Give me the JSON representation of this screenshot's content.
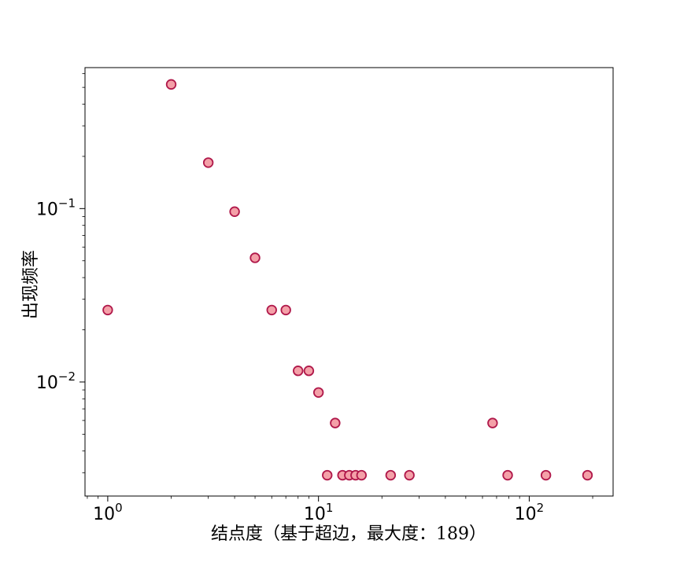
{
  "chart_data": {
    "type": "scatter",
    "xlabel": "结点度（基于超边，最大度：189）",
    "ylabel": "出现频率",
    "xscale": "log",
    "yscale": "log",
    "xlim": [
      0.78,
      250
    ],
    "ylim": [
      0.0022,
      0.65
    ],
    "xticks": [
      {
        "value": 1,
        "base": "10",
        "exp": "0"
      },
      {
        "value": 10,
        "base": "10",
        "exp": "1"
      },
      {
        "value": 100,
        "base": "10",
        "exp": "2"
      }
    ],
    "yticks": [
      {
        "value": 0.01,
        "base": "10",
        "exp": "−2"
      },
      {
        "value": 0.1,
        "base": "10",
        "exp": "−1"
      }
    ],
    "grid": false,
    "marker": {
      "fill": "#f4a0a8",
      "stroke": "#b0184a"
    },
    "points": [
      {
        "x": 1,
        "y": 0.026
      },
      {
        "x": 2,
        "y": 0.52
      },
      {
        "x": 3,
        "y": 0.184
      },
      {
        "x": 4,
        "y": 0.096
      },
      {
        "x": 5,
        "y": 0.052
      },
      {
        "x": 6,
        "y": 0.026
      },
      {
        "x": 7,
        "y": 0.026
      },
      {
        "x": 8,
        "y": 0.0116
      },
      {
        "x": 9,
        "y": 0.0116
      },
      {
        "x": 10,
        "y": 0.0087
      },
      {
        "x": 12,
        "y": 0.0058
      },
      {
        "x": 11,
        "y": 0.0029
      },
      {
        "x": 13,
        "y": 0.0029
      },
      {
        "x": 14,
        "y": 0.0029
      },
      {
        "x": 15,
        "y": 0.0029
      },
      {
        "x": 16,
        "y": 0.0029
      },
      {
        "x": 22,
        "y": 0.0029
      },
      {
        "x": 27,
        "y": 0.0029
      },
      {
        "x": 67,
        "y": 0.0058
      },
      {
        "x": 79,
        "y": 0.0029
      },
      {
        "x": 120,
        "y": 0.0029
      },
      {
        "x": 189,
        "y": 0.0029
      }
    ]
  }
}
